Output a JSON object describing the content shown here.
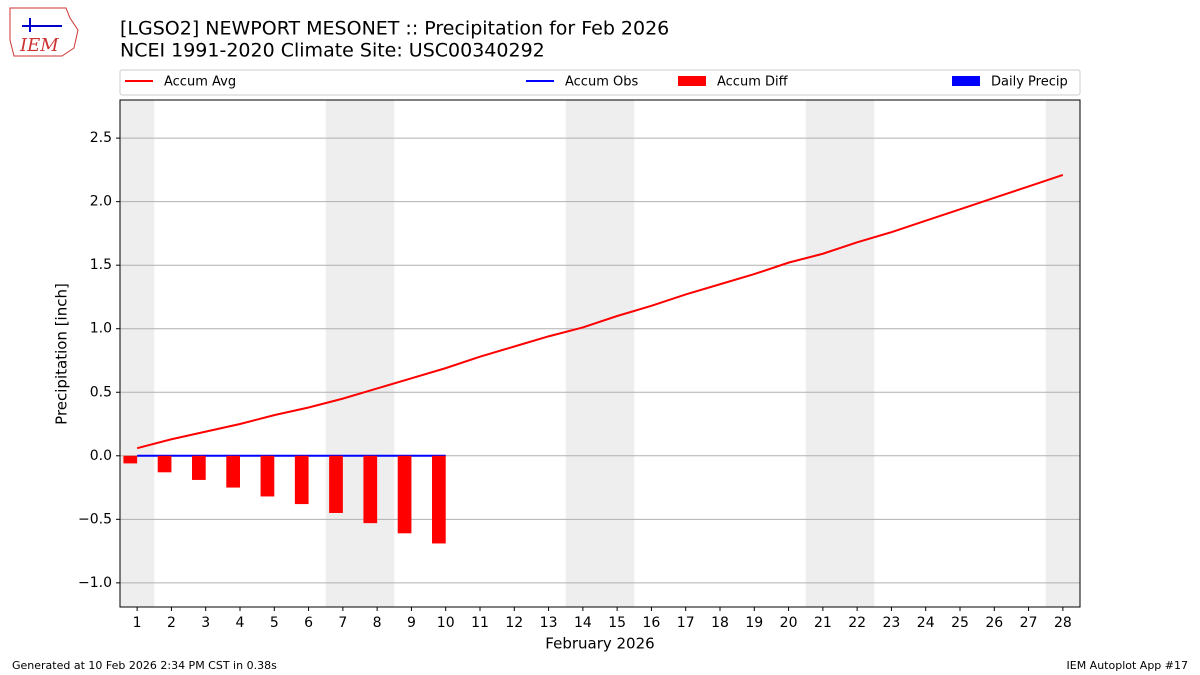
{
  "logo_text": "IEM",
  "footer": {
    "left": "Generated at 10 Feb 2026 2:34 PM CST in 0.38s",
    "right": "IEM Autoplot App #17"
  },
  "chart_data": {
    "type": "line-bar",
    "title": "[LGSO2] NEWPORT MESONET :: Precipitation for Feb 2026",
    "subtitle": "NCEI 1991-2020 Climate Site: USC00340292",
    "x_label": "February 2026",
    "y_label": "Precipitation [inch]",
    "x": [
      1,
      2,
      3,
      4,
      5,
      6,
      7,
      8,
      9,
      10,
      11,
      12,
      13,
      14,
      15,
      16,
      17,
      18,
      19,
      20,
      21,
      22,
      23,
      24,
      25,
      26,
      27,
      28
    ],
    "xlim": [
      0.5,
      28.5
    ],
    "xticks": [
      1,
      2,
      3,
      4,
      5,
      6,
      7,
      8,
      9,
      10,
      11,
      12,
      13,
      14,
      15,
      16,
      17,
      18,
      19,
      20,
      21,
      22,
      23,
      24,
      25,
      26,
      27,
      28
    ],
    "ylim": [
      -1.19,
      2.8
    ],
    "yticks": [
      {
        "value": -1,
        "label": "−1.0"
      },
      {
        "value": -0.5,
        "label": "−0.5"
      },
      {
        "value": 0,
        "label": "0.0"
      },
      0.5,
      {
        "value": 1,
        "label": "1.0"
      },
      1.5,
      {
        "value": 2,
        "label": "2.0"
      },
      2.5
    ],
    "grid": true,
    "shaded_spans": [
      [
        0.5,
        1.5
      ],
      [
        6.5,
        8.5
      ],
      [
        13.5,
        15.5
      ],
      [
        20.5,
        22.5
      ],
      [
        27.5,
        28.5
      ]
    ],
    "shade_color": "#eeeeee",
    "series": [
      {
        "name": "Accum Avg",
        "kind": "line",
        "color": "#ff0000",
        "values": [
          0.06,
          0.13,
          0.19,
          0.25,
          0.32,
          0.38,
          0.45,
          0.53,
          0.61,
          0.69,
          0.78,
          0.86,
          0.94,
          1.01,
          1.1,
          1.18,
          1.27,
          1.35,
          1.43,
          1.52,
          1.59,
          1.68,
          1.76,
          1.85,
          1.94,
          2.03,
          2.12,
          2.21
        ]
      },
      {
        "name": "Accum Obs",
        "kind": "line",
        "color": "#0000ff",
        "values": [
          0,
          0,
          0,
          0,
          0,
          0,
          0,
          0,
          0,
          0,
          null,
          null,
          null,
          null,
          null,
          null,
          null,
          null,
          null,
          null,
          null,
          null,
          null,
          null,
          null,
          null,
          null,
          null
        ]
      },
      {
        "name": "Accum Diff",
        "kind": "bar",
        "color": "#ff0000",
        "values": [
          -0.06,
          -0.13,
          -0.19,
          -0.25,
          -0.32,
          -0.38,
          -0.45,
          -0.53,
          -0.61,
          -0.69,
          null,
          null,
          null,
          null,
          null,
          null,
          null,
          null,
          null,
          null,
          null,
          null,
          null,
          null,
          null,
          null,
          null,
          null
        ]
      },
      {
        "name": "Daily Precip",
        "kind": "bar",
        "color": "#0000ff",
        "values": [
          0,
          0,
          0,
          0,
          0,
          0,
          0,
          0,
          0,
          0,
          null,
          null,
          null,
          null,
          null,
          null,
          null,
          null,
          null,
          null,
          null,
          null,
          null,
          null,
          null,
          null,
          null,
          null
        ]
      }
    ]
  }
}
